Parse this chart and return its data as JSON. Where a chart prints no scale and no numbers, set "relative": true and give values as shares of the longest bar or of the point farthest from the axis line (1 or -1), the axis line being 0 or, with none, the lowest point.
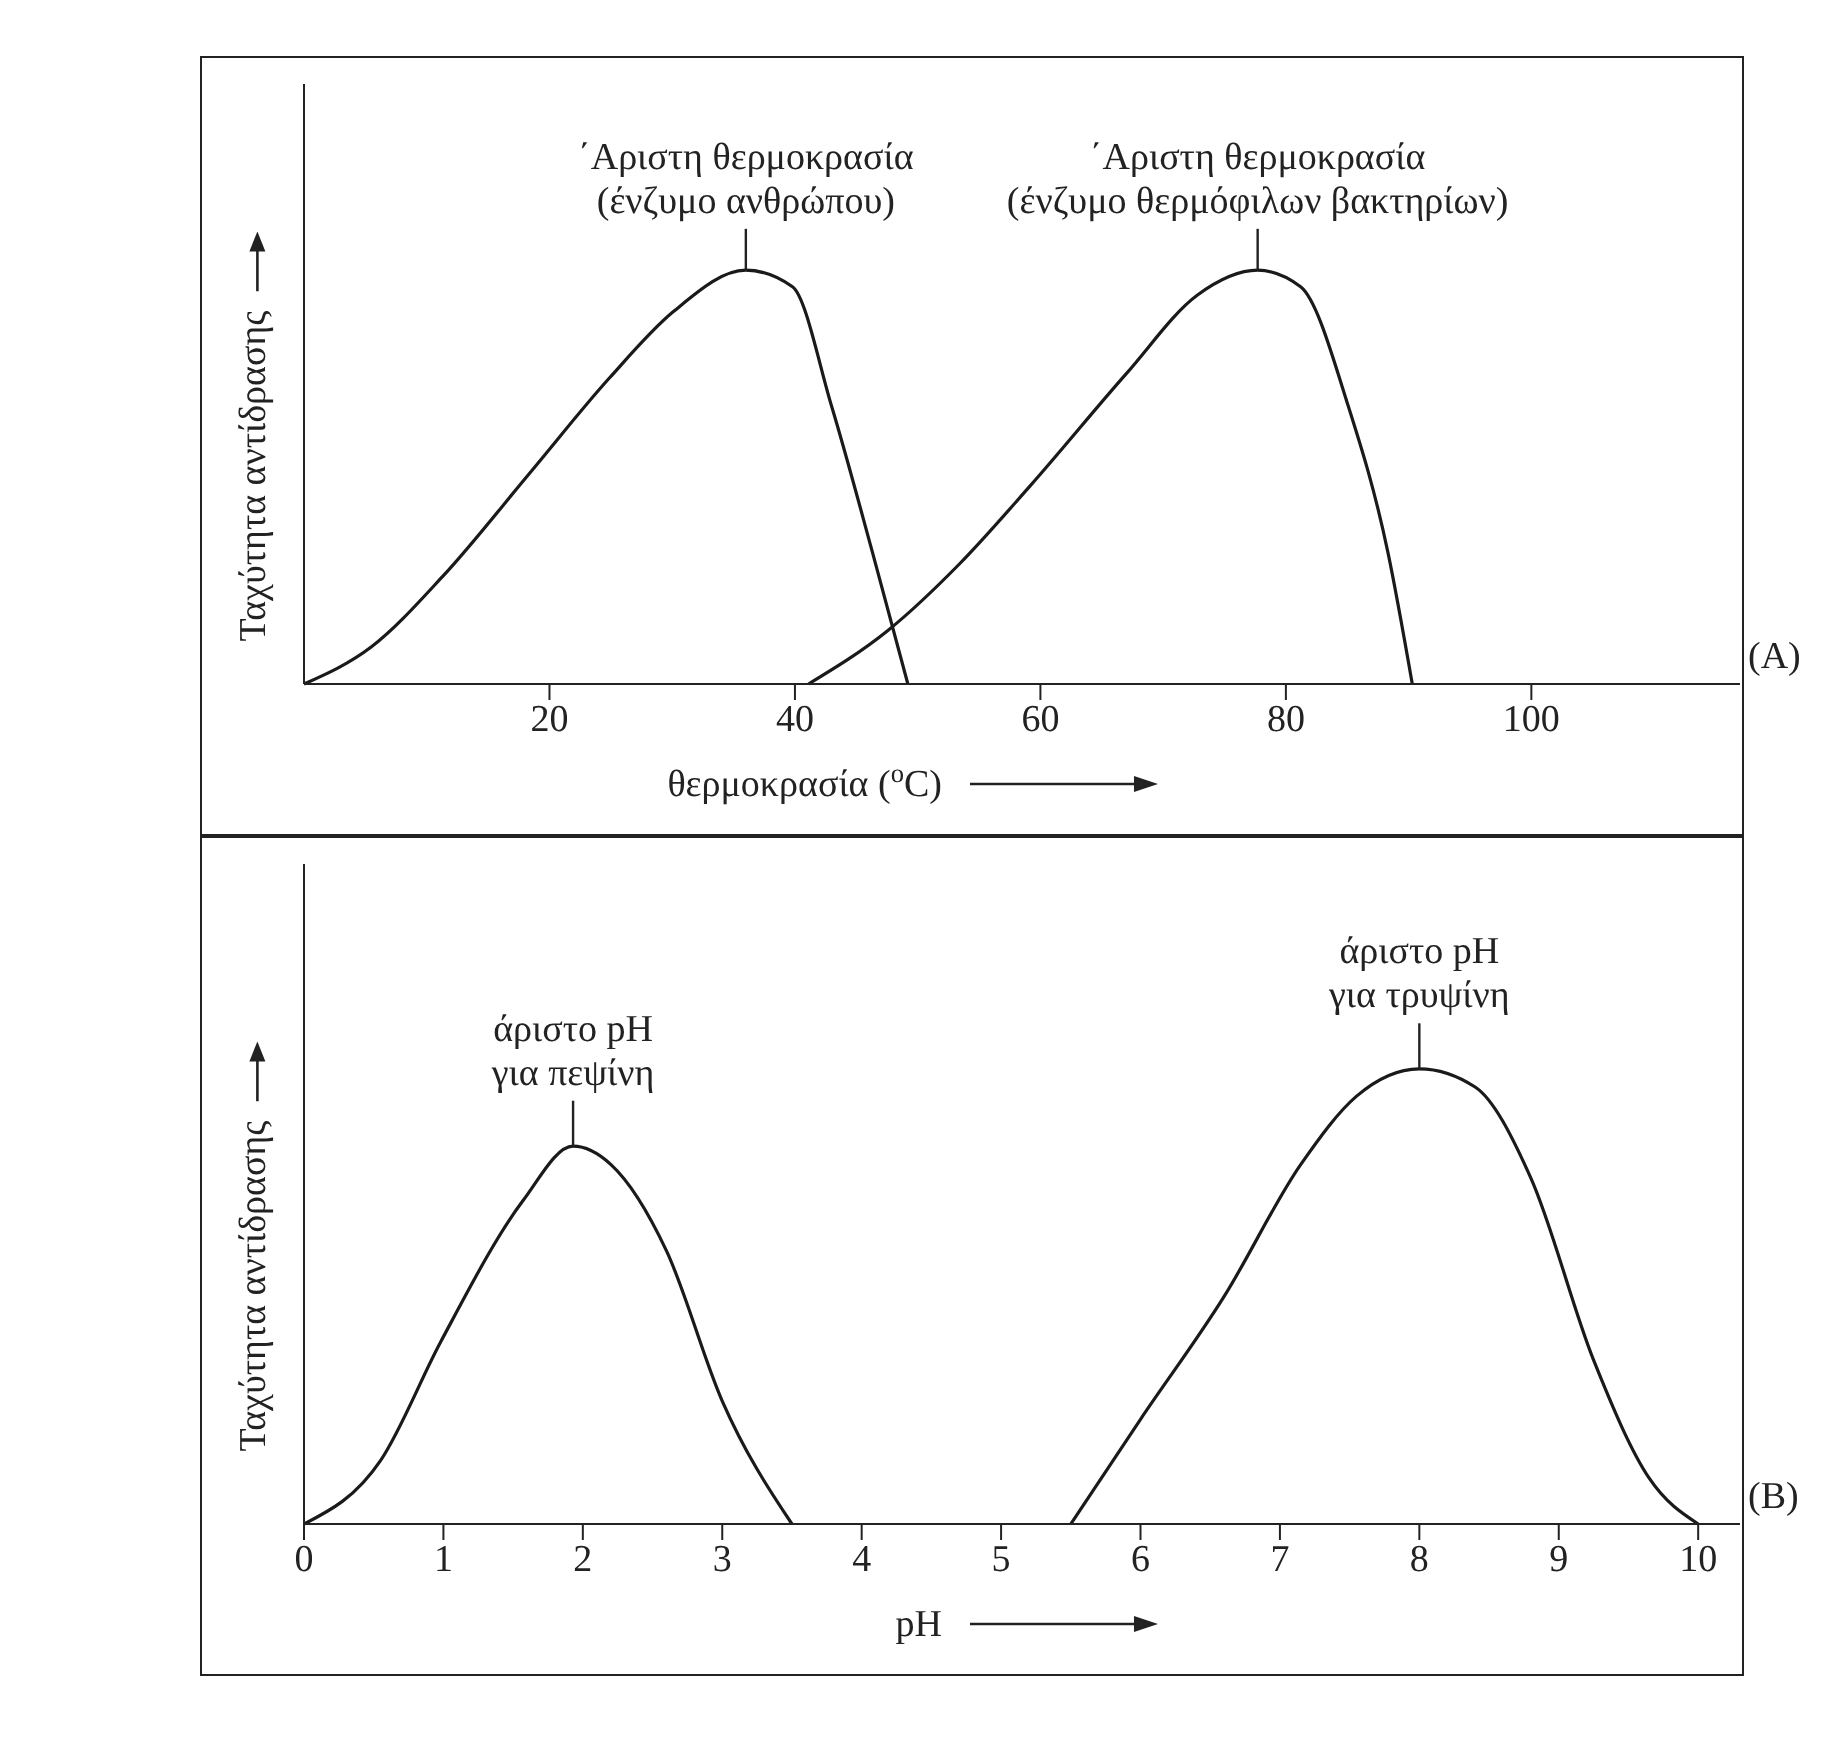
{
  "chart_data": [
    {
      "type": "line",
      "relative": true,
      "xlabel": "θερμοκρασία ($^{o}$C)",
      "ylabel": "Ταχύτητα αντίδρασης",
      "xlim": [
        0,
        117
      ],
      "xticks": [
        20,
        40,
        60,
        80,
        100
      ],
      "series": [
        {
          "color": "#1a1a1a",
          "x": [
            0,
            5.5,
            11.3,
            18.4,
            24.9,
            30.1,
            36,
            39.8,
            43,
            46.3,
            49.2
          ],
          "values": [
            0,
            0.09,
            0.26,
            0.51,
            0.74,
            0.9,
            1,
            0.96,
            0.67,
            0.32,
            0
          ]
        },
        {
          "color": "#1a1a1a",
          "x": [
            41.1,
            47.6,
            53.4,
            59.2,
            67,
            72.8,
            77.7,
            81.2,
            85.1,
            88.3,
            90.3
          ],
          "values": [
            0,
            0.13,
            0.29,
            0.48,
            0.75,
            0.94,
            1,
            0.96,
            0.67,
            0.32,
            0
          ]
        }
      ],
      "annotations": [
        {
          "text": "΄Αριστη θερμοκρασία\n(ένζυμο ανθρώπου)",
          "x": 36,
          "y": 1
        },
        {
          "text": "΄Αριστη θερμοκρασία\n(ένζυμο θερμόφιλων βακτηρίων)",
          "x": 77.7,
          "y": 1
        },
        "(A)"
      ]
    },
    {
      "type": "line",
      "relative": true,
      "xlabel": "pH",
      "ylabel": "Ταχύτητα αντίδρασης",
      "xlim": [
        0,
        10.3
      ],
      "xticks": [
        0,
        1,
        2,
        3,
        4,
        5,
        6,
        7,
        8,
        9,
        10
      ],
      "series": [
        {
          "color": "#1a1a1a",
          "x": [
            0,
            0.55,
            0.98,
            1.57,
            1.93,
            2.2,
            2.6,
            3.0,
            3.5
          ],
          "values": [
            0,
            0.14,
            0.4,
            0.71,
            0.83,
            0.79,
            0.6,
            0.27,
            0
          ]
        },
        {
          "color": "#1a1a1a",
          "x": [
            5.5,
            6.0,
            6.6,
            7.15,
            7.55,
            8.0,
            8.4,
            8.8,
            9.25,
            9.65,
            10
          ],
          "values": [
            0,
            0.23,
            0.5,
            0.79,
            0.94,
            1,
            0.96,
            0.76,
            0.36,
            0.1,
            0
          ]
        }
      ],
      "annotations": [
        {
          "text": "άριστο pH\nγια πεψίνη",
          "x": 1.93,
          "y": 0.83
        },
        {
          "text": "άριστο pH\nγια τρυψίνη",
          "x": 8.0,
          "y": 1
        },
        "(B)"
      ]
    }
  ]
}
